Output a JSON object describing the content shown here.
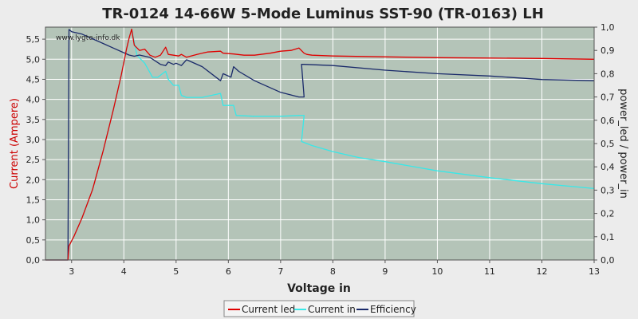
{
  "chart_data": {
    "type": "line",
    "title": "TR-0124 14-66W 5-Mode Luminus SST-90 (TR-0163) LH",
    "xlabel": "Voltage in",
    "ylabel": "Current (Ampere)",
    "y2label": "power_led / power_in",
    "watermark": "www.lygte-info.dk",
    "xlim": [
      2.5,
      13
    ],
    "ylim": [
      0,
      5.8
    ],
    "y2lim": [
      0,
      1.0
    ],
    "x_ticks": [
      3,
      4,
      5,
      6,
      7,
      8,
      9,
      10,
      11,
      12,
      13
    ],
    "y_ticks": [
      0,
      0.5,
      1.0,
      1.5,
      2.0,
      2.5,
      3.0,
      3.5,
      4.0,
      4.5,
      5.0,
      5.5
    ],
    "y_tick_labels": [
      "0,0",
      "0,5",
      "1,0",
      "1,5",
      "2,0",
      "2,5",
      "3,0",
      "3,5",
      "4,0",
      "4,5",
      "5,0",
      "5,5"
    ],
    "y2_ticks": [
      0,
      0.1,
      0.2,
      0.3,
      0.4,
      0.5,
      0.6,
      0.7,
      0.8,
      0.9,
      1.0
    ],
    "y2_tick_labels": [
      "0,0",
      "0,1",
      "0,2",
      "0,3",
      "0,4",
      "0,5",
      "0,6",
      "0,7",
      "0,8",
      "0,9",
      "1,0"
    ],
    "grid": true,
    "legend_position": "bottom",
    "colors": {
      "background": "#b4c4b8",
      "grid": "#ffffff",
      "left_axis_label": "#cc0000",
      "right_axis_label": "#222222"
    },
    "series": [
      {
        "name": "Current led",
        "color": "#e00000",
        "axis": "left",
        "x": [
          2.5,
          2.93,
          2.95,
          3.05,
          3.2,
          3.4,
          3.6,
          3.8,
          3.95,
          4.05,
          4.1,
          4.15,
          4.2,
          4.3,
          4.4,
          4.5,
          4.6,
          4.7,
          4.8,
          4.85,
          4.95,
          5.05,
          5.1,
          5.2,
          5.4,
          5.6,
          5.85,
          5.9,
          6.1,
          6.3,
          6.5,
          6.8,
          7.0,
          7.2,
          7.35,
          7.45,
          7.5,
          7.6,
          8,
          9,
          10,
          11,
          12,
          13
        ],
        "y": [
          0,
          0,
          0.35,
          0.6,
          1.05,
          1.75,
          2.7,
          3.75,
          4.6,
          5.25,
          5.52,
          5.75,
          5.35,
          5.22,
          5.25,
          5.1,
          5.05,
          5.1,
          5.3,
          5.12,
          5.1,
          5.08,
          5.12,
          5.05,
          5.12,
          5.18,
          5.2,
          5.15,
          5.13,
          5.1,
          5.1,
          5.15,
          5.2,
          5.22,
          5.28,
          5.15,
          5.12,
          5.1,
          5.08,
          5.06,
          5.04,
          5.03,
          5.02,
          5.0
        ]
      },
      {
        "name": "Current in",
        "color": "#38e8e8",
        "axis": "left",
        "x": [
          2.5,
          2.93,
          2.95,
          3.05,
          3.2,
          3.4,
          3.6,
          3.8,
          3.95,
          4.05,
          4.1,
          4.15,
          4.25,
          4.4,
          4.55,
          4.65,
          4.75,
          4.8,
          4.85,
          4.95,
          5.05,
          5.1,
          5.2,
          5.5,
          5.85,
          5.9,
          6.1,
          6.15,
          6.5,
          7.0,
          7.35,
          7.45,
          7.4,
          7.6,
          8,
          8.5,
          9,
          10,
          11,
          12,
          13
        ],
        "y": [
          0,
          0,
          0.35,
          0.6,
          1.05,
          1.75,
          2.7,
          3.75,
          4.6,
          5.25,
          5.52,
          5.75,
          5.1,
          4.9,
          4.55,
          4.55,
          4.65,
          4.7,
          4.5,
          4.35,
          4.35,
          4.1,
          4.05,
          4.05,
          4.15,
          3.85,
          3.85,
          3.6,
          3.58,
          3.58,
          3.6,
          3.6,
          2.95,
          2.85,
          2.7,
          2.55,
          2.45,
          2.22,
          2.05,
          1.9,
          1.78
        ]
      },
      {
        "name": "Efficiency",
        "color": "#1a2a6a",
        "axis": "right",
        "x": [
          2.5,
          2.93,
          2.95,
          3.0,
          3.2,
          3.5,
          3.8,
          4.0,
          4.1,
          4.2,
          4.3,
          4.5,
          4.7,
          4.8,
          4.85,
          4.95,
          5.0,
          5.05,
          5.1,
          5.2,
          5.5,
          5.85,
          5.9,
          6.05,
          6.1,
          6.2,
          6.5,
          7.0,
          7.35,
          7.45,
          7.4,
          7.45,
          8,
          9,
          10,
          11,
          12,
          13
        ],
        "y": [
          0,
          0,
          0.99,
          0.98,
          0.97,
          0.94,
          0.91,
          0.89,
          0.88,
          0.875,
          0.88,
          0.87,
          0.84,
          0.835,
          0.85,
          0.84,
          0.845,
          0.84,
          0.835,
          0.86,
          0.83,
          0.77,
          0.8,
          0.785,
          0.83,
          0.81,
          0.77,
          0.72,
          0.7,
          0.7,
          0.84,
          0.84,
          0.835,
          0.815,
          0.8,
          0.79,
          0.775,
          0.77
        ]
      }
    ]
  }
}
